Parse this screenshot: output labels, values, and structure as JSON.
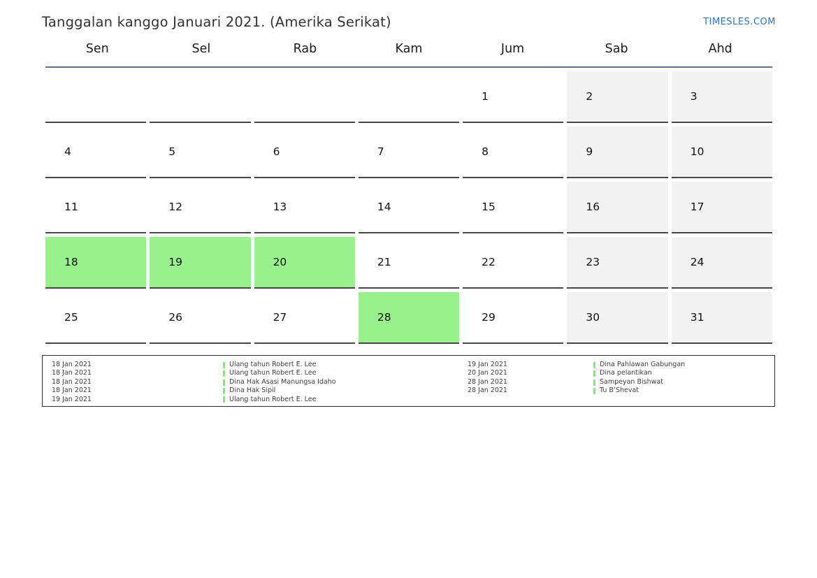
{
  "header": {
    "title": "Tanggalan kanggo Januari 2021. (Amerika Serikat)",
    "site_link": "TIMESLES.COM"
  },
  "weekdays": [
    "Sen",
    "Sel",
    "Rab",
    "Kam",
    "Jum",
    "Sab",
    "Ahd"
  ],
  "calendar": {
    "month": "Januari 2021",
    "weeks": [
      [
        "",
        "",
        "",
        "",
        "1",
        "2",
        "3"
      ],
      [
        "4",
        "5",
        "6",
        "7",
        "8",
        "9",
        "10"
      ],
      [
        "11",
        "12",
        "13",
        "14",
        "15",
        "16",
        "17"
      ],
      [
        "18",
        "19",
        "20",
        "21",
        "22",
        "23",
        "24"
      ],
      [
        "25",
        "26",
        "27",
        "28",
        "29",
        "30",
        "31"
      ]
    ],
    "highlighted_days": [
      "18",
      "19",
      "20",
      "28"
    ],
    "weekend_columns": [
      "Sab",
      "Ahd"
    ]
  },
  "legend": {
    "left": [
      {
        "date": "18 Jan 2021",
        "label": "Ulang tahun Robert E. Lee"
      },
      {
        "date": "18 Jan 2021",
        "label": "Ulang tahun Robert E. Lee"
      },
      {
        "date": "18 Jan 2021",
        "label": "Dina Hak Asasi Manungsa Idaho"
      },
      {
        "date": "18 Jan 2021",
        "label": "Dina Hak Sipil"
      },
      {
        "date": "19 Jan 2021",
        "label": "Ulang tahun Robert E. Lee"
      }
    ],
    "right": [
      {
        "date": "19 Jan 2021",
        "label": "Dina Pahlawan Gabungan"
      },
      {
        "date": "20 Jan 2021",
        "label": "Dina pelantikan"
      },
      {
        "date": "28 Jan 2021",
        "label": "Sampeyan Bishwat"
      },
      {
        "date": "28 Jan 2021",
        "label": "Tu B’Shevat"
      }
    ]
  },
  "colors": {
    "link": "#2e75b6",
    "header_rule": "#54759d",
    "cell_border": "#474747",
    "weekend_bg": "#f2f2f2",
    "highlight_bg": "#99f18d",
    "legend_bar": "#86e878"
  }
}
